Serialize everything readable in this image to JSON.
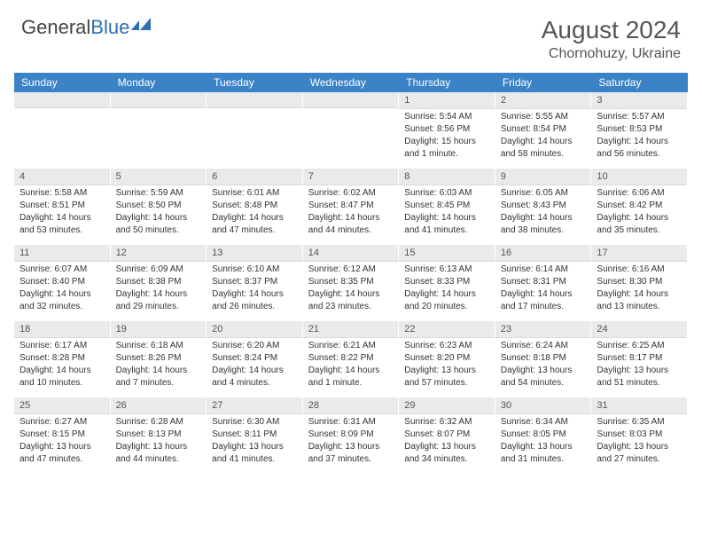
{
  "brand": {
    "part1": "General",
    "part2": "Blue"
  },
  "title": "August 2024",
  "location": "Chornohuzy, Ukraine",
  "colors": {
    "header_bar": "#3b83c7",
    "daynum_bg": "#e8eaec",
    "text": "#333333",
    "title_text": "#555555"
  },
  "dow": [
    "Sunday",
    "Monday",
    "Tuesday",
    "Wednesday",
    "Thursday",
    "Friday",
    "Saturday"
  ],
  "weeks": [
    [
      null,
      null,
      null,
      null,
      {
        "n": "1",
        "sr": "Sunrise: 5:54 AM",
        "ss": "Sunset: 8:56 PM",
        "d1": "Daylight: 15 hours",
        "d2": "and 1 minute."
      },
      {
        "n": "2",
        "sr": "Sunrise: 5:55 AM",
        "ss": "Sunset: 8:54 PM",
        "d1": "Daylight: 14 hours",
        "d2": "and 58 minutes."
      },
      {
        "n": "3",
        "sr": "Sunrise: 5:57 AM",
        "ss": "Sunset: 8:53 PM",
        "d1": "Daylight: 14 hours",
        "d2": "and 56 minutes."
      }
    ],
    [
      {
        "n": "4",
        "sr": "Sunrise: 5:58 AM",
        "ss": "Sunset: 8:51 PM",
        "d1": "Daylight: 14 hours",
        "d2": "and 53 minutes."
      },
      {
        "n": "5",
        "sr": "Sunrise: 5:59 AM",
        "ss": "Sunset: 8:50 PM",
        "d1": "Daylight: 14 hours",
        "d2": "and 50 minutes."
      },
      {
        "n": "6",
        "sr": "Sunrise: 6:01 AM",
        "ss": "Sunset: 8:48 PM",
        "d1": "Daylight: 14 hours",
        "d2": "and 47 minutes."
      },
      {
        "n": "7",
        "sr": "Sunrise: 6:02 AM",
        "ss": "Sunset: 8:47 PM",
        "d1": "Daylight: 14 hours",
        "d2": "and 44 minutes."
      },
      {
        "n": "8",
        "sr": "Sunrise: 6:03 AM",
        "ss": "Sunset: 8:45 PM",
        "d1": "Daylight: 14 hours",
        "d2": "and 41 minutes."
      },
      {
        "n": "9",
        "sr": "Sunrise: 6:05 AM",
        "ss": "Sunset: 8:43 PM",
        "d1": "Daylight: 14 hours",
        "d2": "and 38 minutes."
      },
      {
        "n": "10",
        "sr": "Sunrise: 6:06 AM",
        "ss": "Sunset: 8:42 PM",
        "d1": "Daylight: 14 hours",
        "d2": "and 35 minutes."
      }
    ],
    [
      {
        "n": "11",
        "sr": "Sunrise: 6:07 AM",
        "ss": "Sunset: 8:40 PM",
        "d1": "Daylight: 14 hours",
        "d2": "and 32 minutes."
      },
      {
        "n": "12",
        "sr": "Sunrise: 6:09 AM",
        "ss": "Sunset: 8:38 PM",
        "d1": "Daylight: 14 hours",
        "d2": "and 29 minutes."
      },
      {
        "n": "13",
        "sr": "Sunrise: 6:10 AM",
        "ss": "Sunset: 8:37 PM",
        "d1": "Daylight: 14 hours",
        "d2": "and 26 minutes."
      },
      {
        "n": "14",
        "sr": "Sunrise: 6:12 AM",
        "ss": "Sunset: 8:35 PM",
        "d1": "Daylight: 14 hours",
        "d2": "and 23 minutes."
      },
      {
        "n": "15",
        "sr": "Sunrise: 6:13 AM",
        "ss": "Sunset: 8:33 PM",
        "d1": "Daylight: 14 hours",
        "d2": "and 20 minutes."
      },
      {
        "n": "16",
        "sr": "Sunrise: 6:14 AM",
        "ss": "Sunset: 8:31 PM",
        "d1": "Daylight: 14 hours",
        "d2": "and 17 minutes."
      },
      {
        "n": "17",
        "sr": "Sunrise: 6:16 AM",
        "ss": "Sunset: 8:30 PM",
        "d1": "Daylight: 14 hours",
        "d2": "and 13 minutes."
      }
    ],
    [
      {
        "n": "18",
        "sr": "Sunrise: 6:17 AM",
        "ss": "Sunset: 8:28 PM",
        "d1": "Daylight: 14 hours",
        "d2": "and 10 minutes."
      },
      {
        "n": "19",
        "sr": "Sunrise: 6:18 AM",
        "ss": "Sunset: 8:26 PM",
        "d1": "Daylight: 14 hours",
        "d2": "and 7 minutes."
      },
      {
        "n": "20",
        "sr": "Sunrise: 6:20 AM",
        "ss": "Sunset: 8:24 PM",
        "d1": "Daylight: 14 hours",
        "d2": "and 4 minutes."
      },
      {
        "n": "21",
        "sr": "Sunrise: 6:21 AM",
        "ss": "Sunset: 8:22 PM",
        "d1": "Daylight: 14 hours",
        "d2": "and 1 minute."
      },
      {
        "n": "22",
        "sr": "Sunrise: 6:23 AM",
        "ss": "Sunset: 8:20 PM",
        "d1": "Daylight: 13 hours",
        "d2": "and 57 minutes."
      },
      {
        "n": "23",
        "sr": "Sunrise: 6:24 AM",
        "ss": "Sunset: 8:18 PM",
        "d1": "Daylight: 13 hours",
        "d2": "and 54 minutes."
      },
      {
        "n": "24",
        "sr": "Sunrise: 6:25 AM",
        "ss": "Sunset: 8:17 PM",
        "d1": "Daylight: 13 hours",
        "d2": "and 51 minutes."
      }
    ],
    [
      {
        "n": "25",
        "sr": "Sunrise: 6:27 AM",
        "ss": "Sunset: 8:15 PM",
        "d1": "Daylight: 13 hours",
        "d2": "and 47 minutes."
      },
      {
        "n": "26",
        "sr": "Sunrise: 6:28 AM",
        "ss": "Sunset: 8:13 PM",
        "d1": "Daylight: 13 hours",
        "d2": "and 44 minutes."
      },
      {
        "n": "27",
        "sr": "Sunrise: 6:30 AM",
        "ss": "Sunset: 8:11 PM",
        "d1": "Daylight: 13 hours",
        "d2": "and 41 minutes."
      },
      {
        "n": "28",
        "sr": "Sunrise: 6:31 AM",
        "ss": "Sunset: 8:09 PM",
        "d1": "Daylight: 13 hours",
        "d2": "and 37 minutes."
      },
      {
        "n": "29",
        "sr": "Sunrise: 6:32 AM",
        "ss": "Sunset: 8:07 PM",
        "d1": "Daylight: 13 hours",
        "d2": "and 34 minutes."
      },
      {
        "n": "30",
        "sr": "Sunrise: 6:34 AM",
        "ss": "Sunset: 8:05 PM",
        "d1": "Daylight: 13 hours",
        "d2": "and 31 minutes."
      },
      {
        "n": "31",
        "sr": "Sunrise: 6:35 AM",
        "ss": "Sunset: 8:03 PM",
        "d1": "Daylight: 13 hours",
        "d2": "and 27 minutes."
      }
    ]
  ]
}
